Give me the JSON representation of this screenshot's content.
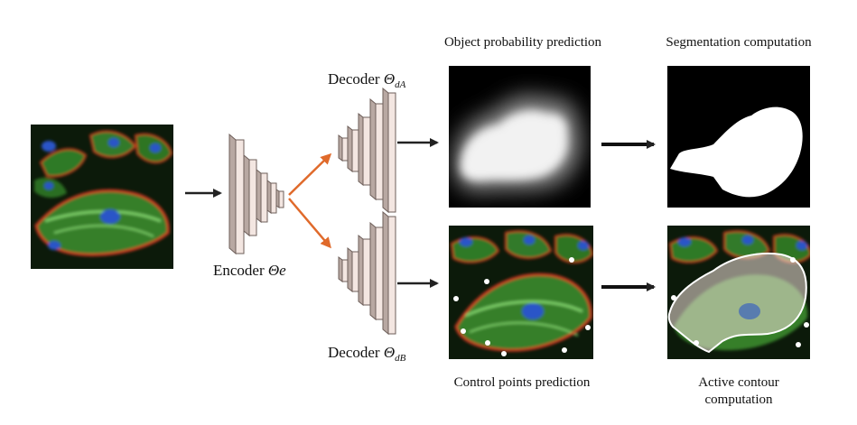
{
  "diagram": {
    "encoder": {
      "label_text": "Encoder ",
      "label_symbol": "Θe"
    },
    "decoder_a": {
      "label_text": "Decoder ",
      "label_symbol": "Θ",
      "label_sub": "dA"
    },
    "decoder_b": {
      "label_text": "Decoder ",
      "label_symbol": "Θ",
      "label_sub": "dB"
    },
    "panels": {
      "probability": {
        "title": "Object probability prediction"
      },
      "segmentation": {
        "title": "Segmentation computation"
      },
      "control_points": {
        "caption": "Control points prediction"
      },
      "active_contour": {
        "caption_line1": "Active contour",
        "caption_line2": "computation"
      }
    },
    "colors": {
      "arrow_dark": "#222222",
      "arrow_orange": "#e06a2b",
      "layer_face": "#f3e6e1",
      "layer_side": "#b8a8a2",
      "layer_stroke": "#6e5f5a",
      "cell_green": "#3fae3a",
      "cell_red": "#c8321f",
      "cell_blue": "#2a55c8"
    }
  }
}
